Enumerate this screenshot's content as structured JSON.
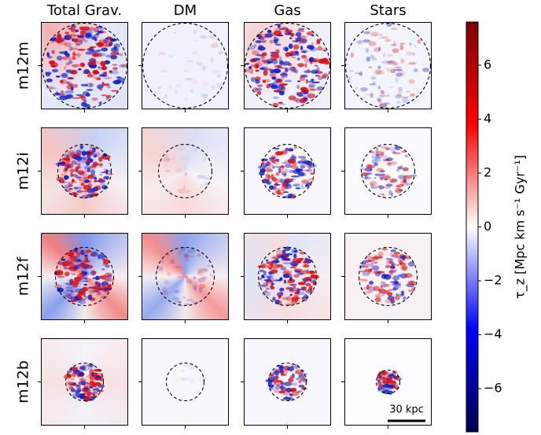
{
  "chart_data": {
    "type": "image-grid",
    "columns": [
      "Total Grav.",
      "DM",
      "Gas",
      "Stars"
    ],
    "rows": [
      "m12m",
      "m12i",
      "m12f",
      "m12b"
    ],
    "colorbar": {
      "label": "τ_z [Mpc km s⁻¹ Gyr⁻¹]",
      "lim": [
        -7.6,
        7.6
      ],
      "ticks": [
        {
          "value": -6,
          "label": "−6"
        },
        {
          "value": -4,
          "label": "−4"
        },
        {
          "value": -2,
          "label": "−2"
        },
        0,
        2,
        4,
        6
      ]
    },
    "scale_bar": "30 kpc"
  }
}
